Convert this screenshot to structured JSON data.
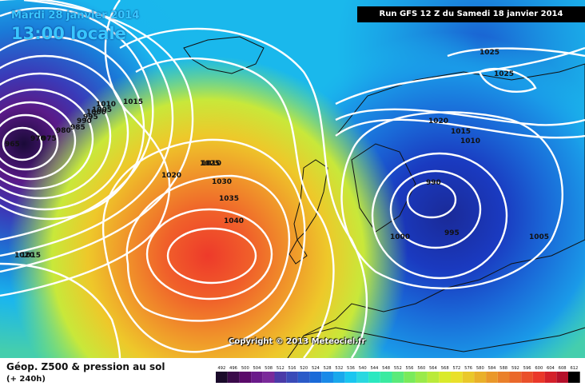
{
  "header": {
    "date_label": "Mardi 28 janvier 2014",
    "time_label": "13:00 locale",
    "run_label": "Run GFS 12 Z du Samedi 18 janvier 2014"
  },
  "copyright": "Copyright © 2013 Meteociel.fr",
  "footer": {
    "title": "Géop. Z500 & pression au sol",
    "subtitle": "(+ 240h)"
  },
  "legend": {
    "values": [
      "492",
      "496",
      "500",
      "504",
      "508",
      "512",
      "516",
      "520",
      "524",
      "528",
      "532",
      "536",
      "540",
      "544",
      "548",
      "552",
      "556",
      "560",
      "564",
      "568",
      "572",
      "576",
      "580",
      "584",
      "588",
      "592",
      "596",
      "600",
      "604",
      "608",
      "612"
    ],
    "colors": [
      "#1a0a2a",
      "#3a0a4a",
      "#5a0a6a",
      "#6a1a8a",
      "#7a2a9a",
      "#4a3aa8",
      "#3a4ab8",
      "#2a5ac8",
      "#1a6ad8",
      "#1a8ae8",
      "#1aa8ec",
      "#1ac6f0",
      "#2ad8e0",
      "#2ae8c0",
      "#3aeaa0",
      "#5aea7a",
      "#7aea5a",
      "#9aea4a",
      "#baea3a",
      "#daea2a",
      "#eae02a",
      "#eac82a",
      "#eab02a",
      "#ea982a",
      "#ea802a",
      "#ea682a",
      "#ea502a",
      "#ea382a",
      "#d4202a",
      "#b4102a",
      "#000000"
    ]
  },
  "isobar_labels": [
    "965",
    "970",
    "975",
    "980",
    "985",
    "990",
    "995",
    "1000",
    "1005",
    "1010",
    "1015",
    "1010",
    "1015",
    "1020",
    "1025",
    "1030",
    "1035",
    "1040",
    "1025",
    "1025",
    "1020",
    "1015",
    "1010",
    "990",
    "995",
    "1000",
    "1005",
    "1020"
  ]
}
